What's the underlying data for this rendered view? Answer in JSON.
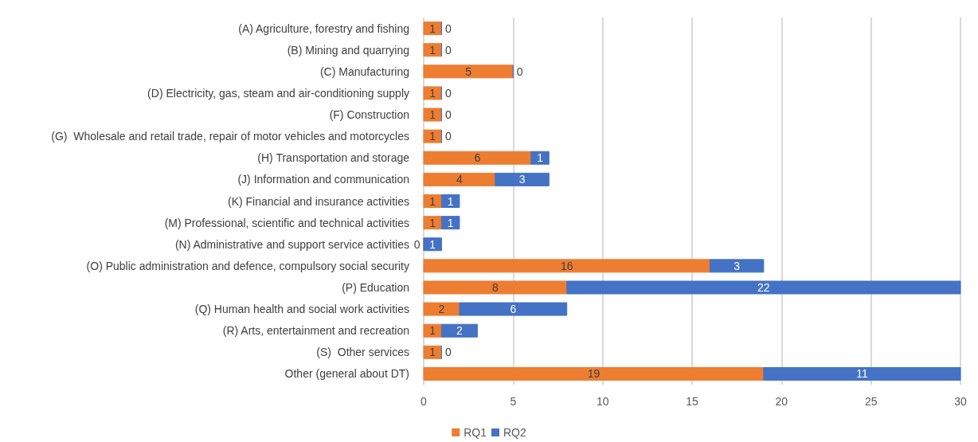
{
  "chart_data": {
    "type": "bar",
    "orientation": "horizontal",
    "stacked": true,
    "categories": [
      "(A) Agriculture, forestry and fishing",
      "(B) Mining and quarrying",
      "(C) Manufacturing",
      "(D) Electricity, gas, steam and air-conditioning supply",
      "(F) Construction",
      "(G)  Wholesale and retail trade, repair of motor vehicles and motorcycles",
      "(H) Transportation and storage",
      "(J) Information and communication",
      "(K) Financial and insurance activities",
      "(M) Professional, scientific and technical activities",
      "(N) Administrative and support service activities",
      "(O) Public administration and defence, compulsory social security",
      "(P) Education",
      "(Q) Human health and social work activities",
      "(R) Arts, entertainment and recreation",
      "(S)  Other services",
      "Other (general about DT)"
    ],
    "series": [
      {
        "name": "RQ1",
        "color": "#ed7d31",
        "values": [
          1,
          1,
          5,
          1,
          1,
          1,
          6,
          4,
          1,
          1,
          0,
          16,
          8,
          2,
          1,
          1,
          19
        ]
      },
      {
        "name": "RQ2",
        "color": "#4472c4",
        "values": [
          0,
          0,
          0,
          0,
          0,
          0,
          1,
          3,
          1,
          1,
          1,
          3,
          22,
          6,
          2,
          0,
          11
        ]
      }
    ],
    "xlim": [
      0,
      30
    ],
    "xticks": [
      0,
      5,
      10,
      15,
      20,
      25,
      30
    ],
    "grid": "x",
    "legend": "bottom",
    "data_labels": true
  }
}
